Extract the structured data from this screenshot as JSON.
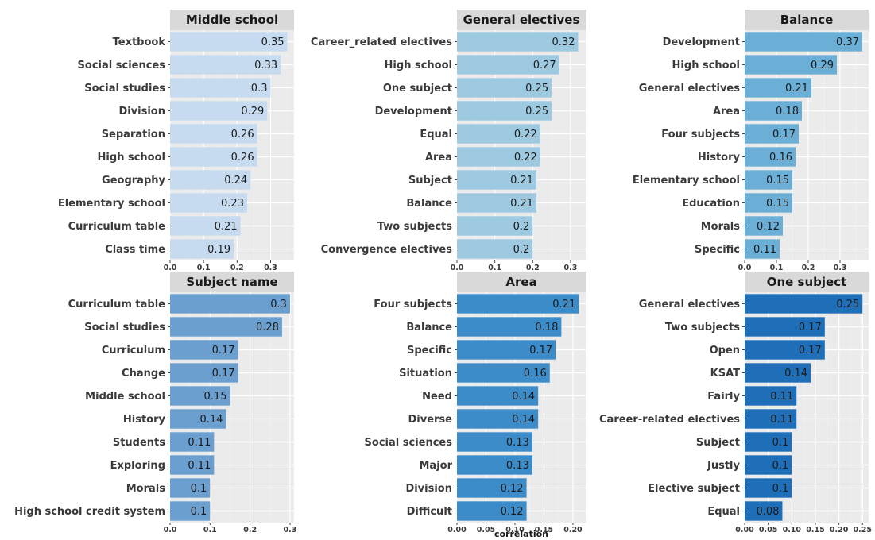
{
  "xlabel": "correlation",
  "chart_data": [
    {
      "type": "bar",
      "title": "Middle school",
      "color": "#c6dbef",
      "xlim": [
        0,
        0.37
      ],
      "ticks": [
        0.0,
        0.1,
        0.2,
        0.3
      ],
      "tick_labels": [
        "0.0",
        "0.1",
        "0.2",
        "0.3"
      ],
      "categories": [
        "Textbook",
        "Social sciences",
        "Social studies",
        "Division",
        "Separation",
        "High school",
        "Geography",
        "Elementary school",
        "Curriculum table",
        "Class time"
      ],
      "values": [
        0.35,
        0.33,
        0.3,
        0.29,
        0.26,
        0.26,
        0.24,
        0.23,
        0.21,
        0.19
      ],
      "value_labels": [
        "0.35",
        "0.33",
        "0.3",
        "0.29",
        "0.26",
        "0.26",
        "0.24",
        "0.23",
        "0.21",
        "0.19"
      ]
    },
    {
      "type": "bar",
      "title": "General electives",
      "color": "#9ecae1",
      "xlim": [
        0,
        0.34
      ],
      "ticks": [
        0.0,
        0.1,
        0.2,
        0.3
      ],
      "tick_labels": [
        "0.0",
        "0.1",
        "0.2",
        "0.3"
      ],
      "categories": [
        "Career_related electives",
        "High school",
        "One subject",
        "Development",
        "Equal",
        "Area",
        "Subject",
        "Balance",
        "Two subjects",
        "Convergence electives"
      ],
      "values": [
        0.32,
        0.27,
        0.25,
        0.25,
        0.22,
        0.22,
        0.21,
        0.21,
        0.2,
        0.2
      ],
      "value_labels": [
        "0.32",
        "0.27",
        "0.25",
        "0.25",
        "0.22",
        "0.22",
        "0.21",
        "0.21",
        "0.2",
        "0.2"
      ]
    },
    {
      "type": "bar",
      "title": "Balance",
      "color": "#6baed6",
      "xlim": [
        0,
        0.39
      ],
      "ticks": [
        0.0,
        0.1,
        0.2,
        0.3
      ],
      "tick_labels": [
        "0.0",
        "0.1",
        "0.2",
        "0.3"
      ],
      "categories": [
        "Development",
        "High school",
        "General electives",
        "Area",
        "Four subjects",
        "History",
        "Elementary school",
        "Education",
        "Morals",
        "Specific"
      ],
      "values": [
        0.37,
        0.29,
        0.21,
        0.18,
        0.17,
        0.16,
        0.15,
        0.15,
        0.12,
        0.11
      ],
      "value_labels": [
        "0.37",
        "0.29",
        "0.21",
        "0.18",
        "0.17",
        "0.16",
        "0.15",
        "0.15",
        "0.12",
        "0.11"
      ]
    },
    {
      "type": "bar",
      "title": "Subject name",
      "color": "#6a9fcf",
      "xlim": [
        0,
        0.31
      ],
      "ticks": [
        0.0,
        0.1,
        0.2,
        0.3
      ],
      "tick_labels": [
        "0.0",
        "0.1",
        "0.2",
        "0.3"
      ],
      "categories": [
        "Curriculum table",
        "Social studies",
        "Curriculum",
        "Change",
        "Middle school",
        "History",
        "Students",
        "Exploring",
        "Morals",
        "High school credit system"
      ],
      "values": [
        0.3,
        0.28,
        0.17,
        0.17,
        0.15,
        0.14,
        0.11,
        0.11,
        0.1,
        0.1
      ],
      "value_labels": [
        "0.3",
        "0.28",
        "0.17",
        "0.17",
        "0.15",
        "0.14",
        "0.11",
        "0.11",
        "0.1",
        "0.1"
      ]
    },
    {
      "type": "bar",
      "title": "Area",
      "color": "#3c8cca",
      "xlim": [
        0,
        0.222
      ],
      "ticks": [
        0.0,
        0.05,
        0.1,
        0.15,
        0.2
      ],
      "tick_labels": [
        "0.00",
        "0.05",
        "0.10",
        "0.15",
        "0.20"
      ],
      "categories": [
        "Four subjects",
        "Balance",
        "Specific",
        "Situation",
        "Need",
        "Diverse",
        "Social sciences",
        "Major",
        "Division",
        "Difficult"
      ],
      "values": [
        0.21,
        0.18,
        0.17,
        0.16,
        0.14,
        0.14,
        0.13,
        0.13,
        0.12,
        0.12
      ],
      "value_labels": [
        "0.21",
        "0.18",
        "0.17",
        "0.16",
        "0.14",
        "0.14",
        "0.13",
        "0.13",
        "0.12",
        "0.12"
      ]
    },
    {
      "type": "bar",
      "title": "One subject",
      "color": "#1f6fb8",
      "xlim": [
        0,
        0.263
      ],
      "ticks": [
        0.0,
        0.05,
        0.1,
        0.15,
        0.2,
        0.25
      ],
      "tick_labels": [
        "0.00",
        "0.05",
        "0.10",
        "0.15",
        "0.20",
        "0.25"
      ],
      "categories": [
        "General electives",
        "Two subjects",
        "Open",
        "KSAT",
        "Fairly",
        "Career-related electives",
        "Subject",
        "Justly",
        "Elective subject",
        "Equal"
      ],
      "values": [
        0.25,
        0.17,
        0.17,
        0.14,
        0.11,
        0.11,
        0.1,
        0.1,
        0.1,
        0.08
      ],
      "value_labels": [
        "0.25",
        "0.17",
        "0.17",
        "0.14",
        "0.11",
        "0.11",
        "0.1",
        "0.1",
        "0.1",
        "0.08"
      ]
    }
  ]
}
